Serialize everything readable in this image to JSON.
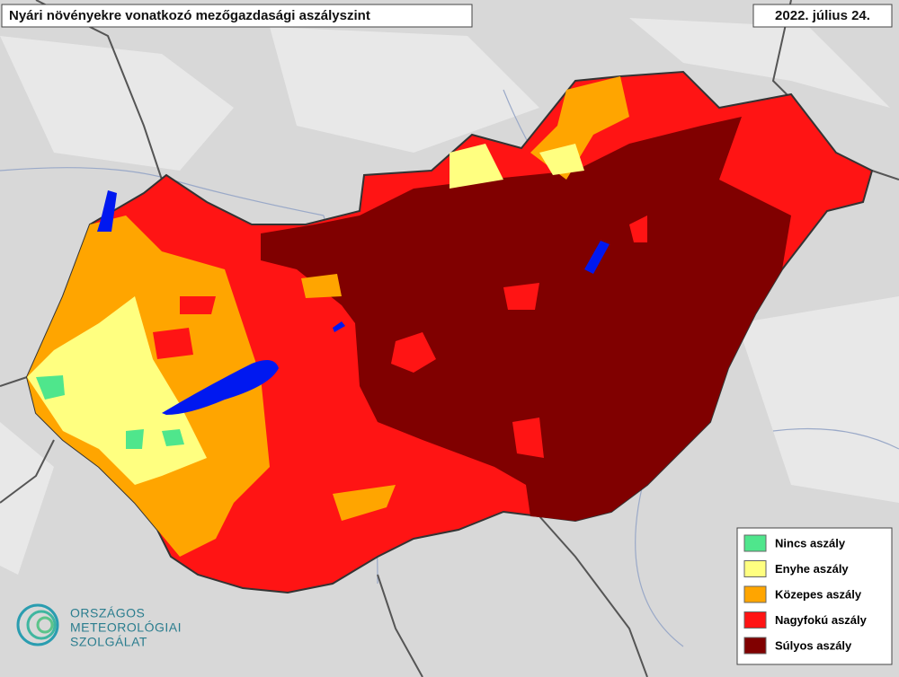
{
  "header": {
    "title": "Nyári növényekre vonatkozó mezőgazdasági aszályszint",
    "date": "2022. július 24."
  },
  "legend": {
    "items": [
      {
        "label": "Nincs aszály",
        "color": "#4fe68c"
      },
      {
        "label": "Enyhe aszály",
        "color": "#ffff80"
      },
      {
        "label": "Közepes aszály",
        "color": "#ffa500"
      },
      {
        "label": "Nagyfokú aszály",
        "color": "#ff1414"
      },
      {
        "label": "Súlyos aszály",
        "color": "#800000"
      }
    ]
  },
  "logo": {
    "lines": [
      "ORSZÁGOS",
      "METEOROLÓGIAI",
      "SZOLGÁLAT"
    ]
  }
}
